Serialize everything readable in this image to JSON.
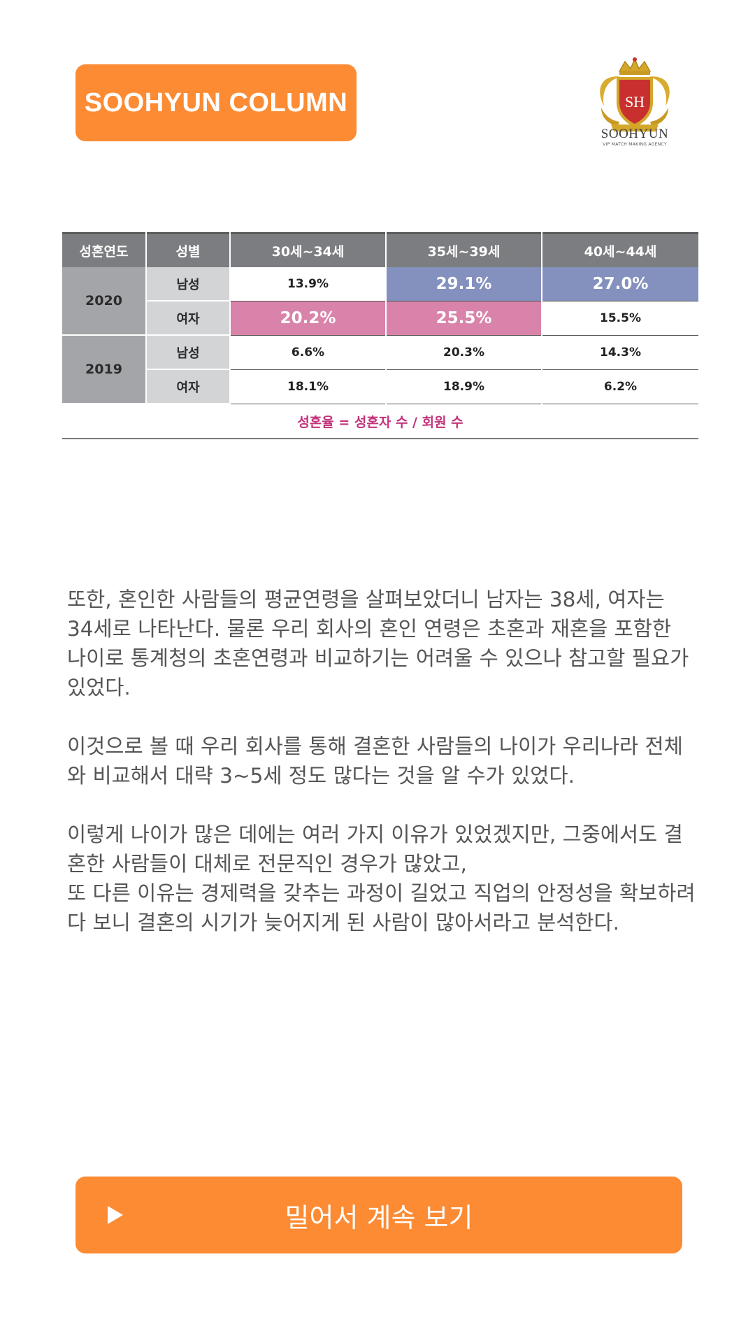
{
  "header": {
    "badge_label": "SOOHYUN COLUMN",
    "logo_text": "SOOHYUN",
    "logo_subtext": "VIP MATCH MAKING AGENCY",
    "logo_monogram": "SH"
  },
  "table": {
    "headers": [
      "성혼연도",
      "성별",
      "30세~34세",
      "35세~39세",
      "40세~44세"
    ],
    "years": [
      "2020",
      "2019"
    ],
    "sexes": [
      "남성",
      "여자",
      "남성",
      "여자"
    ],
    "rows": [
      [
        "13.9%",
        "29.1%",
        "27.0%"
      ],
      [
        "20.2%",
        "25.5%",
        "15.5%"
      ],
      [
        "6.6%",
        "20.3%",
        "14.3%"
      ],
      [
        "18.1%",
        "18.9%",
        "6.2%"
      ]
    ],
    "formula": "성혼율 = 성혼자 수 / 회원 수"
  },
  "article": {
    "paragraphs": [
      "또한, 혼인한 사람들의 평균연령을 살펴보았더니 남자는 38세, 여자는 34세로 나타난다. 물론 우리 회사의 혼인 연령은 초혼과 재혼을 포함한 나이로 통계청의 초혼연령과 비교하기는 어려울 수 있으나 참고할 필요가 있었다.",
      "이것으로 볼 때 우리 회사를 통해 결혼한 사람들의 나이가 우리나라 전체와 비교해서 대략 3~5세 정도 많다는 것을 알 수가 있었다.",
      "이렇게 나이가 많은 데에는 여러 가지 이유가 있었겠지만, 그중에서도 결혼한 사람들이 대체로 전문직인 경우가 많았고,",
      "또 다른 이유는 경제력을 갖추는 과정이 길었고 직업의 안정성을 확보하려다 보니 결혼의 시기가 늦어지게 된 사람이 많아서라고 분석한다."
    ]
  },
  "cta": {
    "label": "밀어서 계속 보기",
    "icon": "play-icon"
  },
  "colors": {
    "accent": "#fc8b33",
    "highlight_blue": "#8490bd",
    "highlight_pink": "#d983aa",
    "formula_text": "#c2337a"
  }
}
